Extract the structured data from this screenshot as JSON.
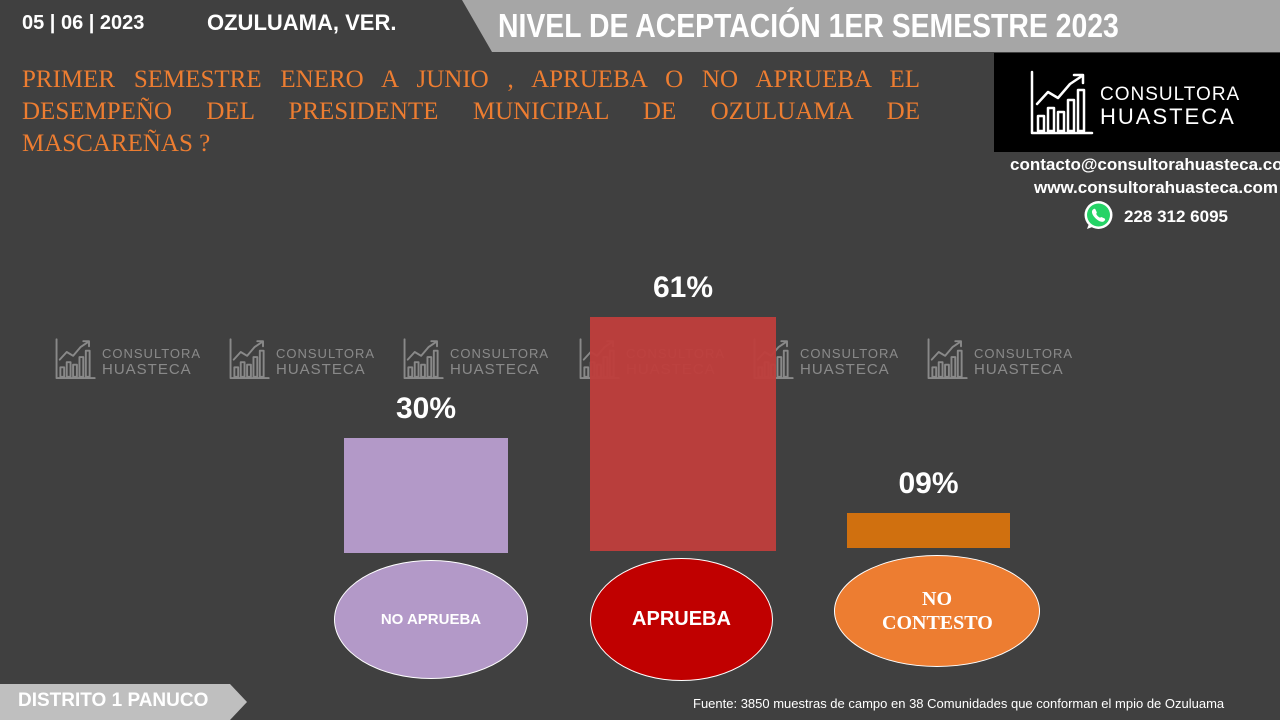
{
  "header": {
    "date": "05 | 06 | 2023",
    "place": "OZULUAMA, VER.",
    "title": "NIVEL DE ACEPTACIÓN  1ER SEMESTRE 2023"
  },
  "question": "PRIMER SEMESTRE ENERO A JUNIO , APRUEBA O NO APRUEBA EL DESEMPEÑO DEL PRESIDENTE MUNICIPAL DE  OZULUAMA DE MASCAREÑAS ?",
  "logo": {
    "line1": "CONSULTORA",
    "line2": "HUASTECA",
    "icon": "chart-growth-icon"
  },
  "contact": {
    "email": "contacto@consultorahuasteca.com",
    "website": "www.consultorahuasteca.com",
    "phone": "228 312 6095",
    "phone_icon": "whatsapp-icon"
  },
  "watermark": {
    "line1": "CONSULTORA",
    "line2": "HUASTECA"
  },
  "chart_data": {
    "type": "bar",
    "categories": [
      "NO APRUEBA",
      "APRUEBA",
      "NO CONTESTO"
    ],
    "values": [
      30,
      61,
      9
    ],
    "data_labels": [
      "30%",
      "61%",
      "09%"
    ],
    "colors": [
      "#b399c8",
      "#be3e3c",
      "#d0700f"
    ],
    "category_colors": [
      "#b399c8",
      "#c00000",
      "#ed7d31"
    ],
    "ylim": [
      0,
      61
    ],
    "title": "",
    "xlabel": "",
    "ylabel": ""
  },
  "footer": {
    "district": "DISTRITO 1 PANUCO",
    "source": "Fuente: 3850 muestras de campo en  38 Comunidades que conforman el mpio de  Ozuluama"
  }
}
